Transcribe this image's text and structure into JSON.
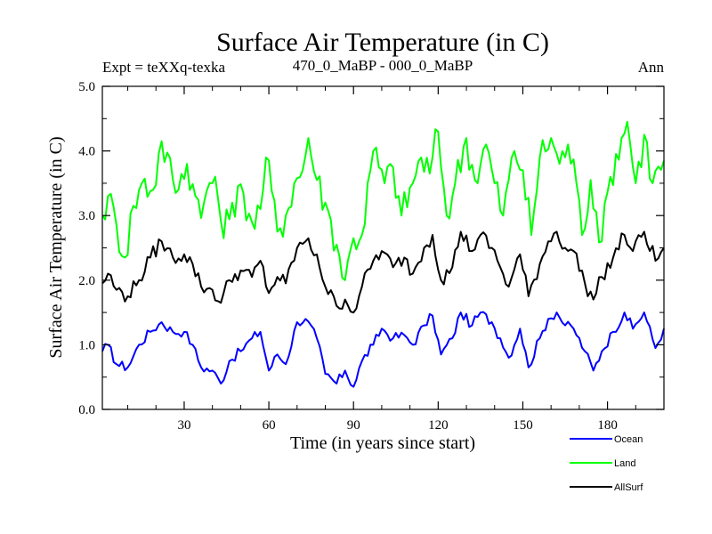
{
  "chart_data": {
    "type": "line",
    "title": "Surface Air Temperature (in C)",
    "subtitle_left": "Expt = teXXq-texka",
    "subtitle_center": "470_0_MaBP - 000_0_MaBP",
    "subtitle_right": "Ann",
    "xlabel": "Time (in years since start)",
    "ylabel": "Surface Air Temperature (in C)",
    "xlim": [
      1,
      200
    ],
    "ylim": [
      0,
      5
    ],
    "xticks": [
      30,
      60,
      90,
      120,
      150,
      180
    ],
    "yticks": [
      "0.0",
      "1.0",
      "2.0",
      "3.0",
      "4.0",
      "5.0"
    ],
    "legend_position": "bottom-right",
    "series": [
      {
        "name": "Ocean",
        "color": "#0000ff",
        "anchors": [
          [
            1,
            0.9
          ],
          [
            3,
            1.0
          ],
          [
            6,
            0.7
          ],
          [
            10,
            0.65
          ],
          [
            14,
            1.0
          ],
          [
            18,
            1.2
          ],
          [
            22,
            1.35
          ],
          [
            26,
            1.2
          ],
          [
            30,
            1.2
          ],
          [
            33,
            1.0
          ],
          [
            36,
            0.65
          ],
          [
            40,
            0.6
          ],
          [
            43,
            0.4
          ],
          [
            46,
            0.75
          ],
          [
            50,
            0.9
          ],
          [
            54,
            1.1
          ],
          [
            57,
            1.2
          ],
          [
            60,
            0.6
          ],
          [
            63,
            0.85
          ],
          [
            66,
            0.7
          ],
          [
            70,
            1.35
          ],
          [
            73,
            1.4
          ],
          [
            77,
            1.1
          ],
          [
            80,
            0.55
          ],
          [
            84,
            0.4
          ],
          [
            87,
            0.6
          ],
          [
            90,
            0.35
          ],
          [
            93,
            0.75
          ],
          [
            97,
            1.0
          ],
          [
            100,
            1.25
          ],
          [
            104,
            1.1
          ],
          [
            108,
            1.15
          ],
          [
            111,
            1.0
          ],
          [
            115,
            1.3
          ],
          [
            118,
            1.45
          ],
          [
            121,
            0.85
          ],
          [
            125,
            1.1
          ],
          [
            128,
            1.5
          ],
          [
            132,
            1.3
          ],
          [
            135,
            1.5
          ],
          [
            139,
            1.35
          ],
          [
            142,
            1.1
          ],
          [
            145,
            0.8
          ],
          [
            149,
            1.25
          ],
          [
            152,
            0.65
          ],
          [
            156,
            1.1
          ],
          [
            159,
            1.4
          ],
          [
            162,
            1.5
          ],
          [
            165,
            1.3
          ],
          [
            168,
            1.25
          ],
          [
            172,
            0.9
          ],
          [
            175,
            0.6
          ],
          [
            178,
            0.9
          ],
          [
            182,
            1.2
          ],
          [
            186,
            1.5
          ],
          [
            189,
            1.25
          ],
          [
            193,
            1.5
          ],
          [
            197,
            0.95
          ],
          [
            200,
            1.25
          ]
        ]
      },
      {
        "name": "Land",
        "color": "#00ff00",
        "anchors": [
          [
            1,
            3.0
          ],
          [
            3,
            3.3
          ],
          [
            6,
            2.85
          ],
          [
            9,
            2.35
          ],
          [
            12,
            3.15
          ],
          [
            15,
            3.5
          ],
          [
            19,
            3.4
          ],
          [
            22,
            4.15
          ],
          [
            26,
            3.55
          ],
          [
            28,
            3.4
          ],
          [
            31,
            3.8
          ],
          [
            34,
            3.3
          ],
          [
            37,
            3.2
          ],
          [
            41,
            3.6
          ],
          [
            44,
            2.65
          ],
          [
            47,
            3.2
          ],
          [
            51,
            3.35
          ],
          [
            54,
            2.9
          ],
          [
            57,
            3.1
          ],
          [
            59,
            3.9
          ],
          [
            63,
            2.75
          ],
          [
            66,
            3.0
          ],
          [
            69,
            3.5
          ],
          [
            72,
            3.7
          ],
          [
            74,
            4.2
          ],
          [
            77,
            3.55
          ],
          [
            80,
            3.2
          ],
          [
            84,
            2.55
          ],
          [
            87,
            2.0
          ],
          [
            90,
            2.65
          ],
          [
            93,
            2.7
          ],
          [
            97,
            4.0
          ],
          [
            101,
            3.5
          ],
          [
            104,
            3.75
          ],
          [
            107,
            3.0
          ],
          [
            111,
            3.5
          ],
          [
            114,
            3.9
          ],
          [
            117,
            3.65
          ],
          [
            120,
            4.3
          ],
          [
            123,
            3.0
          ],
          [
            126,
            3.5
          ],
          [
            130,
            4.2
          ],
          [
            133,
            3.55
          ],
          [
            137,
            4.1
          ],
          [
            140,
            3.5
          ],
          [
            143,
            3.0
          ],
          [
            147,
            4.0
          ],
          [
            150,
            3.7
          ],
          [
            153,
            2.7
          ],
          [
            156,
            3.9
          ],
          [
            160,
            4.2
          ],
          [
            163,
            3.8
          ],
          [
            166,
            4.1
          ],
          [
            169,
            3.5
          ],
          [
            171,
            2.7
          ],
          [
            174,
            3.55
          ],
          [
            178,
            2.6
          ],
          [
            181,
            3.6
          ],
          [
            185,
            4.2
          ],
          [
            187,
            4.45
          ],
          [
            190,
            3.5
          ],
          [
            193,
            4.25
          ],
          [
            196,
            3.5
          ],
          [
            200,
            3.85
          ]
        ]
      },
      {
        "name": "AllSurf",
        "color": "#000000",
        "anchors": [
          [
            1,
            1.95
          ],
          [
            3,
            2.1
          ],
          [
            6,
            1.85
          ],
          [
            10,
            1.75
          ],
          [
            14,
            2.0
          ],
          [
            18,
            2.35
          ],
          [
            22,
            2.6
          ],
          [
            26,
            2.35
          ],
          [
            30,
            2.4
          ],
          [
            33,
            2.25
          ],
          [
            36,
            1.9
          ],
          [
            40,
            1.85
          ],
          [
            43,
            1.65
          ],
          [
            46,
            2.0
          ],
          [
            50,
            2.15
          ],
          [
            54,
            2.05
          ],
          [
            57,
            2.3
          ],
          [
            60,
            1.8
          ],
          [
            63,
            2.05
          ],
          [
            66,
            1.95
          ],
          [
            70,
            2.5
          ],
          [
            73,
            2.6
          ],
          [
            77,
            2.4
          ],
          [
            80,
            1.9
          ],
          [
            84,
            1.6
          ],
          [
            87,
            1.7
          ],
          [
            90,
            1.5
          ],
          [
            93,
            1.9
          ],
          [
            97,
            2.3
          ],
          [
            100,
            2.45
          ],
          [
            104,
            2.2
          ],
          [
            108,
            2.35
          ],
          [
            111,
            2.1
          ],
          [
            115,
            2.5
          ],
          [
            118,
            2.7
          ],
          [
            121,
            2.0
          ],
          [
            125,
            2.2
          ],
          [
            128,
            2.75
          ],
          [
            132,
            2.45
          ],
          [
            135,
            2.7
          ],
          [
            139,
            2.5
          ],
          [
            142,
            2.2
          ],
          [
            145,
            1.9
          ],
          [
            149,
            2.4
          ],
          [
            152,
            1.75
          ],
          [
            156,
            2.25
          ],
          [
            159,
            2.6
          ],
          [
            162,
            2.75
          ],
          [
            165,
            2.5
          ],
          [
            168,
            2.45
          ],
          [
            172,
            1.95
          ],
          [
            175,
            1.7
          ],
          [
            178,
            2.05
          ],
          [
            182,
            2.35
          ],
          [
            186,
            2.7
          ],
          [
            189,
            2.45
          ],
          [
            193,
            2.75
          ],
          [
            197,
            2.3
          ],
          [
            200,
            2.5
          ]
        ]
      }
    ]
  }
}
